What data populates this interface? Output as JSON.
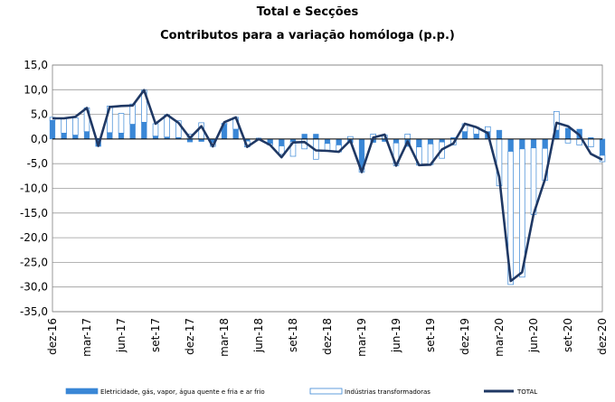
{
  "chart_data": {
    "type": "bar",
    "title": "Total e Secções",
    "subtitle": "Contributos para a variação homóloga (p.p.)",
    "ylim": [
      -35,
      15
    ],
    "yticks": [
      "15,0",
      "10,0",
      "5,0",
      "0,0",
      "-5,0",
      "-10,0",
      "-15,0",
      "-20,0",
      "-25,0",
      "-30,0",
      "-35,0"
    ],
    "grid": true,
    "legend_position": "bottom",
    "categories": [
      "dez-16",
      "jan-17",
      "fev-17",
      "mar-17",
      "abr-17",
      "mai-17",
      "jun-17",
      "jul-17",
      "ago-17",
      "set-17",
      "out-17",
      "nov-17",
      "dez-17",
      "jan-18",
      "fev-18",
      "mar-18",
      "abr-18",
      "mai-18",
      "jun-18",
      "jul-18",
      "ago-18",
      "set-18",
      "out-18",
      "nov-18",
      "dez-18",
      "jan-19",
      "fev-19",
      "mar-19",
      "abr-19",
      "mai-19",
      "jun-19",
      "jul-19",
      "ago-19",
      "set-19",
      "out-19",
      "nov-19",
      "dez-19",
      "jan-20",
      "fev-20",
      "mar-20",
      "abr-20",
      "mai-20",
      "jun-20",
      "jul-20",
      "ago-20",
      "set-20",
      "out-20",
      "nov-20",
      "dez-20"
    ],
    "tick_labels": [
      "dez-16",
      "",
      "",
      "mar-17",
      "",
      "",
      "jun-17",
      "",
      "",
      "set-17",
      "",
      "",
      "dez-17",
      "",
      "",
      "mar-18",
      "",
      "",
      "jun-18",
      "",
      "",
      "set-18",
      "",
      "",
      "dez-18",
      "",
      "",
      "mar-19",
      "",
      "",
      "jun-19",
      "",
      "",
      "set-19",
      "",
      "",
      "dez-19",
      "",
      "",
      "mar-20",
      "",
      "",
      "jun-20",
      "",
      "",
      "set-20",
      "",
      "",
      "dez-20"
    ],
    "series": [
      {
        "name": "Eletricidade, gás, vapor, água quente e fria e ar frio",
        "kind": "bar",
        "color": "#3a87d6",
        "values": [
          3.8,
          1.2,
          0.8,
          1.5,
          -1.5,
          1.3,
          1.2,
          3.0,
          3.4,
          0.6,
          0.4,
          0.3,
          -0.6,
          -0.5,
          -0.7,
          3.0,
          2.0,
          -0.4,
          0.2,
          -0.9,
          -1.4,
          -0.5,
          1.0,
          1.0,
          -0.9,
          -1.2,
          -0.8,
          -6.0,
          -0.7,
          -0.5,
          -0.8,
          -1.5,
          -1.6,
          -1.0,
          -0.6,
          0.3,
          1.5,
          1.0,
          1.5,
          1.8,
          -2.5,
          -2.0,
          -1.8,
          -1.9,
          1.8,
          2.2,
          2.0,
          0.3,
          -3.3
        ]
      },
      {
        "name": "Indústrias transformadoras",
        "kind": "bar",
        "color": "#ffffff",
        "edge": "#3a87d6",
        "values": [
          0.6,
          3.0,
          3.5,
          4.8,
          0.1,
          5.4,
          4.0,
          4.1,
          6.5,
          2.5,
          4.5,
          3.4,
          1.0,
          3.3,
          -0.8,
          0.2,
          2.4,
          -1.2,
          -0.2,
          -0.3,
          -1.7,
          -3.0,
          -2.0,
          -4.1,
          -1.5,
          -1.4,
          0.5,
          -0.7,
          1.0,
          0.8,
          -4.6,
          1.0,
          -3.7,
          -4.2,
          -3.3,
          -1.2,
          1.6,
          1.4,
          1.0,
          -9.5,
          -27.0,
          -26.0,
          -13.5,
          -6.5,
          3.8,
          -0.8,
          -1.2,
          -1.6,
          -1.3
        ]
      },
      {
        "name": "TOTAL",
        "kind": "line",
        "color": "#1f3864",
        "values": [
          4.2,
          4.2,
          4.5,
          6.3,
          -1.4,
          6.5,
          6.7,
          6.8,
          9.9,
          3.1,
          4.9,
          3.3,
          0.2,
          2.6,
          -1.5,
          3.4,
          4.4,
          -1.6,
          0.0,
          -1.2,
          -3.7,
          -0.7,
          -0.6,
          -2.3,
          -2.4,
          -2.6,
          -0.3,
          -6.7,
          0.3,
          0.9,
          -5.4,
          -0.5,
          -5.3,
          -5.2,
          -2.1,
          -0.9,
          3.1,
          2.4,
          1.2,
          -7.7,
          -28.8,
          -27.0,
          -15.2,
          -8.1,
          3.3,
          2.6,
          0.8,
          -3.0,
          -4.2
        ]
      }
    ]
  }
}
